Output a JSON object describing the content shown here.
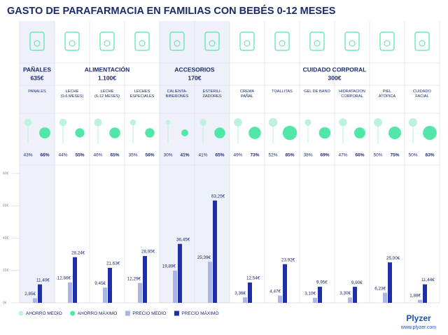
{
  "chart_data": {
    "type": "bar",
    "title": "GASTO DE PARAFARMACIA EN FAMILIAS CON BEBÉS 0-12 MESES",
    "groups": [
      {
        "name": "PAÑALES",
        "total": 635,
        "total_label": "635€",
        "categories": [
          "PAÑALES"
        ]
      },
      {
        "name": "ALIMENTACIÓN",
        "total": 1100,
        "total_label": "1.100€",
        "categories": [
          "LECHE\n(0-6 MESES)",
          "LECHE\n(6-12 MESES)",
          "LECHES\nESPECIALES"
        ]
      },
      {
        "name": "ACCESORIOS",
        "total": 170,
        "total_label": "170€",
        "categories": [
          "CALIENTA-\nBIBERONES",
          "ESTERILI-\nZADORES"
        ]
      },
      {
        "name": "CUIDADO CORPORAL",
        "total": 300,
        "total_label": "300€",
        "categories": [
          "CREMA\nPAÑAL",
          "TOALLITAS",
          "GEL DE BAÑO",
          "HIDRATACIÓN\nCORPORAL",
          "PIEL\nATÓPICA",
          "CUIDADO\nFACIAL"
        ]
      }
    ],
    "series": [
      {
        "name": "AHORRO MEDIO",
        "color": "#bff2dc",
        "mark": "circle",
        "values": [
          43,
          44,
          46,
          35,
          30,
          41,
          49,
          52,
          38,
          47,
          50,
          50
        ],
        "value_labels": [
          "43%",
          "44%",
          "46%",
          "35%",
          "30%",
          "41%",
          "49%",
          "52%",
          "38%",
          "47%",
          "50%",
          "50%"
        ]
      },
      {
        "name": "AHORRO MÁXIMO",
        "color": "#52e6a9",
        "mark": "circle",
        "values": [
          66,
          55,
          65,
          56,
          41,
          65,
          73,
          85,
          69,
          66,
          75,
          83
        ],
        "value_labels": [
          "66%",
          "55%",
          "65%",
          "56%",
          "41%",
          "65%",
          "73%",
          "85%",
          "69%",
          "66%",
          "75%",
          "83%"
        ]
      },
      {
        "name": "PRECIO MEDIO",
        "color": "#a8b5e6",
        "mark": "bar",
        "values": [
          2.85,
          12.66,
          9.45,
          12.29,
          19.89,
          25.39,
          3.36,
          4.47,
          3.1,
          3.3,
          6.23,
          1.88
        ],
        "value_labels": [
          "2,85€",
          "12,66€",
          "9,45€",
          "12,29€",
          "19,89€",
          "25,39€",
          "3,36€",
          "4,47€",
          "3,10€",
          "3,30€",
          "6,23€",
          "1,88€"
        ]
      },
      {
        "name": "PRECIO MÁXIMO",
        "color": "#1f2fa8",
        "mark": "bar",
        "values": [
          11.4,
          28.24,
          21.63,
          28.95,
          36.45,
          63.25,
          12.54,
          23.92,
          9.95,
          9.9,
          25.0,
          11.44
        ],
        "value_labels": [
          "11,40€",
          "28,24€",
          "21,63€",
          "28,95€",
          "36,45€",
          "63,25€",
          "12,54€",
          "23,92€",
          "9,95€",
          "9,90€",
          "25,00€",
          "11,44€"
        ]
      }
    ],
    "ylim": [
      0,
      80
    ],
    "yticks": [
      {
        "value": 0,
        "label": "0€"
      },
      {
        "value": 20,
        "label": "20€"
      },
      {
        "value": 40,
        "label": "40€"
      },
      {
        "value": 60,
        "label": "60€"
      },
      {
        "value": 80,
        "label": "80€"
      }
    ]
  },
  "footer": {
    "brand": "Plyzer",
    "url": "www.plyzer.com"
  }
}
